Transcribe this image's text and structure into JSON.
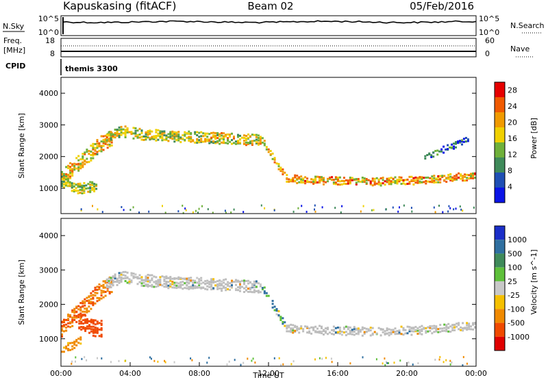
{
  "header": {
    "station": "Kapuskasing (fitACF)",
    "beam": "Beam 02",
    "date": "05/Feb/2016"
  },
  "panels": {
    "nsky": {
      "label": "N.Sky",
      "left_ticks": [
        "10^5",
        "10^0"
      ],
      "right_ticks": [
        "10^5",
        "10^0"
      ],
      "right_label": "N.Search"
    },
    "freq": {
      "label_lines": [
        "Freq.",
        "[MHz]"
      ],
      "left_ticks": [
        "18",
        "8"
      ],
      "right_ticks": [
        "60",
        "0"
      ],
      "right_label": "Nave"
    },
    "cpid": {
      "label": "CPID",
      "value": "themis 3300"
    }
  },
  "colors": {
    "power_scale": [
      "#0a14e6",
      "#1f4fb4",
      "#3f8a5a",
      "#6fb03a",
      "#f0d000",
      "#f09a00",
      "#f05a00",
      "#e60000"
    ],
    "velocity_scale": [
      "#1a2ec8",
      "#2f6fa0",
      "#3f8a5a",
      "#5ec03a",
      "#c8c8c8",
      "#f5c000",
      "#f08a00",
      "#f04a00",
      "#e00000"
    ],
    "ground_scatter": "#bdbdbd"
  },
  "chart_data": [
    {
      "type": "heatmap",
      "name": "power",
      "ylabel": "Slant Range [km]",
      "ylim": [
        200,
        4500
      ],
      "xlim": [
        0,
        24
      ],
      "y_ticks": [
        1000,
        2000,
        3000,
        4000
      ],
      "colorbar_label": "Power [dB]",
      "colorbar_ticks": [
        4,
        8,
        12,
        16,
        20,
        24,
        28
      ],
      "colorbar_range": [
        0,
        30
      ],
      "echo_bands": [
        {
          "x": [
            0.0,
            0.8,
            1.5,
            2.0,
            2.6,
            3.0
          ],
          "y": [
            1300,
            1700,
            2000,
            2300,
            2500,
            2600
          ],
          "width": 500,
          "level": 18
        },
        {
          "x": [
            2.6,
            3.5,
            4.5,
            6.0,
            8.0,
            10.0,
            11.6
          ],
          "y": [
            2600,
            2800,
            2700,
            2650,
            2600,
            2550,
            2500
          ],
          "width": 350,
          "level": 16
        },
        {
          "x": [
            11.6,
            12.3,
            13.0
          ],
          "y": [
            2500,
            1900,
            1300
          ],
          "width": 200,
          "level": 20
        },
        {
          "x": [
            13.0,
            15.0,
            18.0,
            21.0,
            24.0
          ],
          "y": [
            1300,
            1250,
            1200,
            1250,
            1400
          ],
          "width": 250,
          "level": 20
        },
        {
          "x": [
            0.0,
            0.5,
            1.0,
            1.5,
            2.1
          ],
          "y": [
            1200,
            1100,
            1000,
            1000,
            1100
          ],
          "width": 350,
          "level": 14
        },
        {
          "x": [
            21.0,
            22.5,
            23.6
          ],
          "y": [
            2000,
            2300,
            2600
          ],
          "width": 200,
          "level": 6
        }
      ]
    },
    {
      "type": "heatmap",
      "name": "velocity",
      "ylabel": "Slant Range [km]",
      "xlabel": "Time UT",
      "ylim": [
        200,
        4500
      ],
      "xlim": [
        0,
        24
      ],
      "y_ticks": [
        1000,
        2000,
        3000,
        4000
      ],
      "x_ticks": [
        "00:00",
        "04:00",
        "08:00",
        "12:00",
        "16:00",
        "20:00",
        "00:00"
      ],
      "colorbar_label": "Velocity [m s^-1]",
      "colorbar_ticks": [
        "1000",
        "500",
        "100",
        "25",
        "-25",
        "-100",
        "-500",
        "-1000"
      ],
      "echo_bands": [
        {
          "x": [
            0.0,
            0.8,
            1.5,
            2.0,
            2.6,
            3.0
          ],
          "y": [
            1300,
            1700,
            2000,
            2300,
            2500,
            2600
          ],
          "width": 500,
          "velocity": -500
        },
        {
          "x": [
            2.6,
            3.5,
            4.5,
            6.0,
            8.0,
            10.0,
            11.6
          ],
          "y": [
            2600,
            2800,
            2700,
            2650,
            2600,
            2550,
            2500
          ],
          "width": 350,
          "velocity": 0
        },
        {
          "x": [
            11.6,
            12.3,
            13.0
          ],
          "y": [
            2500,
            1900,
            1300
          ],
          "width": 200,
          "velocity": 100
        },
        {
          "x": [
            13.0,
            15.0,
            18.0,
            21.0,
            24.0
          ],
          "y": [
            1300,
            1250,
            1200,
            1250,
            1400
          ],
          "width": 250,
          "velocity": 0
        },
        {
          "x": [
            1.0,
            1.5,
            2.0,
            2.4
          ],
          "y": [
            1500,
            1400,
            1300,
            1300
          ],
          "width": 500,
          "velocity": -700
        },
        {
          "x": [
            0.0,
            0.6,
            1.2
          ],
          "y": [
            700,
            800,
            1000
          ],
          "width": 250,
          "velocity": -200
        }
      ]
    }
  ]
}
